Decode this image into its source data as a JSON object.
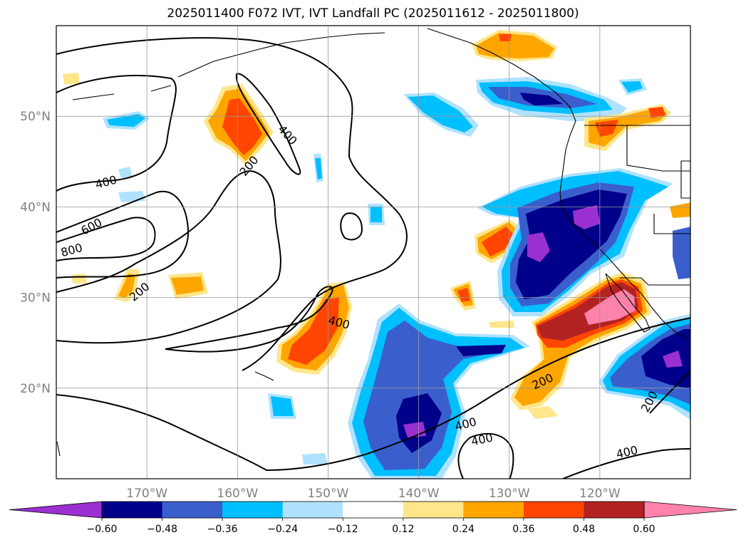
{
  "title": "2025011400 F072 IVT, IVT Landfall PC (2025011612 - 2025011800)",
  "map": {
    "lon_range": [
      -180,
      -110
    ],
    "lat_range": [
      10,
      60
    ],
    "lon_ticks": [
      {
        "value": -170,
        "label": "170°W"
      },
      {
        "value": -160,
        "label": "160°W"
      },
      {
        "value": -150,
        "label": "150°W"
      },
      {
        "value": -140,
        "label": "140°W"
      },
      {
        "value": -130,
        "label": "130°W"
      },
      {
        "value": -120,
        "label": "120°W"
      }
    ],
    "lat_ticks": [
      {
        "value": 20,
        "label": "20°N"
      },
      {
        "value": 30,
        "label": "30°N"
      },
      {
        "value": 40,
        "label": "40°N"
      },
      {
        "value": 50,
        "label": "50°N"
      }
    ],
    "grid": true,
    "tick_color": "#808080"
  },
  "ivt_contour_labels": [
    {
      "text": "200",
      "lon": -158.7,
      "lat": 44.5,
      "angle": -50
    },
    {
      "text": "400",
      "lon": -174.5,
      "lat": 42.7,
      "angle": -15
    },
    {
      "text": "600",
      "lon": -176.1,
      "lat": 37.8,
      "angle": -28
    },
    {
      "text": "800",
      "lon": -178.3,
      "lat": 35.2,
      "angle": -15
    },
    {
      "text": "200",
      "lon": -170.8,
      "lat": 30.6,
      "angle": -40
    },
    {
      "text": "400",
      "lon": -154.5,
      "lat": 47.9,
      "angle": 48
    },
    {
      "text": "400",
      "lon": -148.8,
      "lat": 27.2,
      "angle": 15
    },
    {
      "text": "200",
      "lon": -126.3,
      "lat": 20.7,
      "angle": -25
    },
    {
      "text": "400",
      "lon": -133.0,
      "lat": 14.3,
      "angle": -12
    },
    {
      "text": "400",
      "lon": -134.8,
      "lat": 16.0,
      "angle": -15
    },
    {
      "text": "400",
      "lon": -117.0,
      "lat": 12.9,
      "angle": -13
    },
    {
      "text": "200",
      "lon": -114.5,
      "lat": 18.5,
      "angle": -62
    }
  ],
  "colorbar": {
    "levels": [
      -0.6,
      -0.48,
      -0.36,
      -0.24,
      -0.12,
      0.12,
      0.24,
      0.36,
      0.48,
      0.6
    ],
    "tick_labels": [
      "−0.60",
      "−0.48",
      "−0.36",
      "−0.24",
      "−0.12",
      "0.12",
      "0.24",
      "0.36",
      "0.48",
      "0.60"
    ],
    "colors": [
      "#9b30d0",
      "#00008b",
      "#3a5fcd",
      "#00bfff",
      "#b0e2ff",
      "#ffffff",
      "#ffe68a",
      "#ffa500",
      "#ff4500",
      "#b22222",
      "#ff82ab"
    ],
    "extend": "both"
  }
}
